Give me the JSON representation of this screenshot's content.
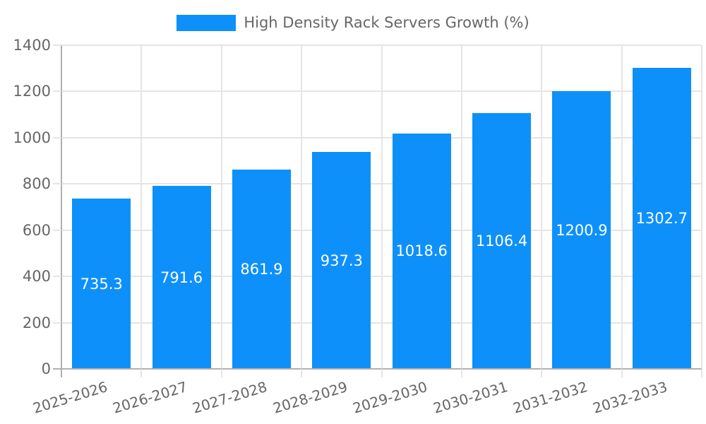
{
  "legend": {
    "label": "High Density Rack Servers Growth (%)"
  },
  "chart_data": {
    "type": "bar",
    "title": "High Density Rack Servers Growth (%)",
    "categories": [
      "2025-2026",
      "2026-2027",
      "2027-2028",
      "2028-2029",
      "2029-2030",
      "2030-2031",
      "2031-2032",
      "2032-2033"
    ],
    "values": [
      735.3,
      791.6,
      861.9,
      937.3,
      1018.6,
      1106.4,
      1200.9,
      1302.7
    ],
    "value_labels": [
      "735.3",
      "791.6",
      "861.9",
      "937.3",
      "1018.6",
      "1106.4",
      "1200.9",
      "1302.7"
    ],
    "xlabel": "",
    "ylabel": "",
    "ylim": [
      0,
      1400
    ],
    "ytick_step": 200,
    "ytick_labels": [
      "0",
      "200",
      "400",
      "600",
      "800",
      "1000",
      "1200",
      "1400"
    ],
    "grid": true,
    "legend_position": "top",
    "colors": {
      "bar": "#0e90fb",
      "bar_value_label": "#ffffff",
      "axis_text": "#666666",
      "gridline": "#e5e5e5",
      "axis_line": "#b0b0b0",
      "background": "#ffffff"
    }
  }
}
